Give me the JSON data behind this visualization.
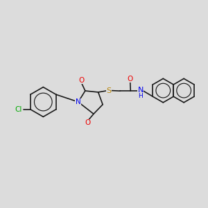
{
  "background_color": "#dcdcdc",
  "bond_color": "#1a1a1a",
  "bond_width": 1.2,
  "atom_colors": {
    "C": "#1a1a1a",
    "N": "#0000ee",
    "O": "#ee0000",
    "S": "#b8860b",
    "Cl": "#00aa00",
    "H": "#0000ee"
  },
  "font_size": 7.5,
  "fig_width": 3.0,
  "fig_height": 3.0,
  "dpi": 100,
  "scale": 1.0
}
